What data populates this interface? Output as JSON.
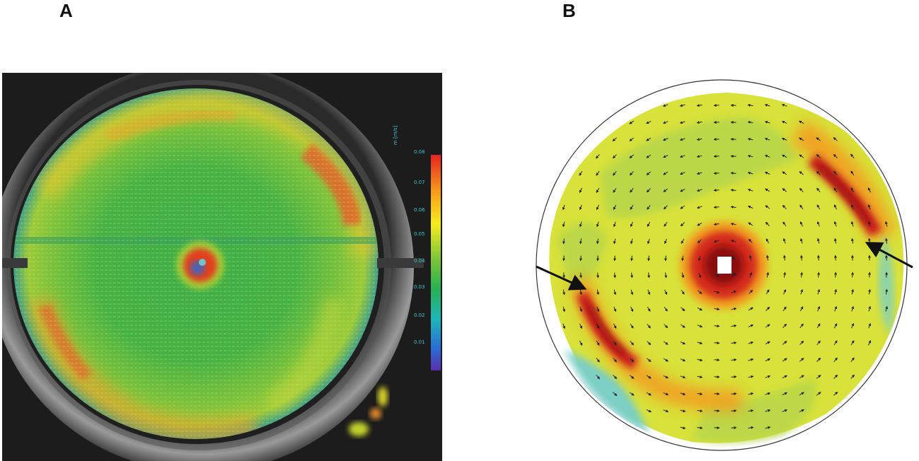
{
  "figure": {
    "panel_a_label": "A",
    "panel_b_label": "B"
  },
  "panel_a": {
    "colorbar_ticks": [
      "0.08",
      "0.07",
      "0.06",
      "0.05",
      "0.04",
      "0.03",
      "0.02",
      "0.01"
    ],
    "colorbar_header": "m [m/s]",
    "colors": [
      "#b0188a",
      "#e8231f",
      "#f6a21b",
      "#f5ed1c",
      "#7fc639",
      "#29b052",
      "#1fb6b8",
      "#2a6bd6",
      "#5b2ea8"
    ]
  },
  "panel_b": {
    "colors": [
      "#8b0a0a",
      "#d42a1f",
      "#f6931e",
      "#f7ef2a",
      "#b6d54b",
      "#7ccfc4",
      "#3aa6e0",
      "#2a6ed0"
    ]
  }
}
